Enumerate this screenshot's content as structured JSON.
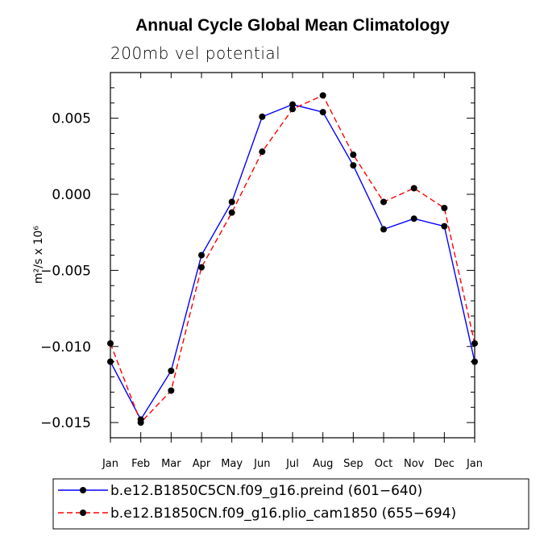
{
  "chart_data": {
    "type": "line",
    "title": "Annual Cycle Global Mean Climatology",
    "subtitle": "200mb vel potential",
    "ylabel": "m²/s x 10⁶",
    "categories": [
      "Jan",
      "Feb",
      "Mar",
      "Apr",
      "May",
      "Jun",
      "Jul",
      "Aug",
      "Sep",
      "Oct",
      "Nov",
      "Dec",
      "Jan"
    ],
    "ylim": [
      -0.016,
      0.008
    ],
    "yticks": [
      0.005,
      0.0,
      -0.005,
      -0.01,
      -0.015
    ],
    "ytick_labels": [
      "0.005",
      "0.000",
      "−0.005",
      "−0.010",
      "−0.015"
    ],
    "series": [
      {
        "name": "b.e12.B1850C5CN.f09_g16.preind (601−640)",
        "color": "#0000ff",
        "style": "solid",
        "values": [
          -0.011,
          -0.0148,
          -0.0116,
          -0.004,
          -0.0005,
          0.0051,
          0.0059,
          0.0054,
          0.0019,
          -0.0023,
          -0.0016,
          -0.0021,
          -0.011
        ]
      },
      {
        "name": "b.e12.B1850CN.f09_g16.plio_cam1850 (655−694)",
        "color": "#ff0000",
        "style": "dashed",
        "values": [
          -0.0098,
          -0.015,
          -0.0129,
          -0.0048,
          -0.0012,
          0.0028,
          0.0056,
          0.0065,
          0.0026,
          -0.0005,
          0.0004,
          -0.0009,
          -0.0098
        ]
      }
    ]
  }
}
